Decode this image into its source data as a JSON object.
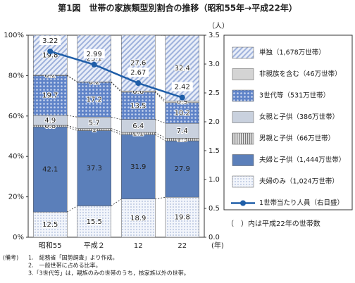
{
  "chart_data": {
    "type": "bar",
    "stacked": true,
    "title": "第1図　世帯の家族類型別割合の推移（昭和55年→平成22年）",
    "categories": [
      "昭和55",
      "平成２",
      "12",
      "22"
    ],
    "xlabel": "(年)",
    "y2label": "（人）",
    "series": [
      {
        "name": "夫婦のみ（1,024万世帯）",
        "color": "#dfe6f3",
        "pattern": "dots-light",
        "values": [
          12.5,
          15.5,
          18.9,
          19.8
        ]
      },
      {
        "name": "夫婦と子供（1,444万世帯）",
        "color": "#5b7fba",
        "pattern": "solid",
        "values": [
          42.1,
          37.3,
          31.9,
          27.9
        ]
      },
      {
        "name": "男親と子供（66万世帯）",
        "color": "#9a9a9a",
        "pattern": "stripes",
        "values": [
          0.8,
          1.0,
          1.1,
          1.3
        ]
      },
      {
        "name": "女親と子供（386万世帯）",
        "color": "#c9d1de",
        "pattern": "solid",
        "values": [
          4.9,
          5.7,
          6.4,
          7.4
        ]
      },
      {
        "name": "3世代等（531万世帯）",
        "color": "#6f8fcf",
        "pattern": "dots",
        "values": [
          19.7,
          17.2,
          13.5,
          10.2
        ]
      },
      {
        "name": "非親族を含む（46万世帯）",
        "color": "#d4d4d4",
        "pattern": "solid",
        "values": [
          0.2,
          0.2,
          0.6,
          0.9
        ]
      },
      {
        "name": "単独（1,678万世帯）",
        "color": "#9fb2dc",
        "pattern": "hatch",
        "values": [
          19.8,
          23.1,
          27.6,
          32.4
        ]
      },
      {
        "name": "1世帯当たり人員（右目盛）",
        "type": "line",
        "axis": "y2",
        "color": "#1f5ea8",
        "values": [
          3.22,
          2.99,
          2.67,
          2.42
        ]
      }
    ],
    "ylim": [
      0,
      100
    ],
    "yticks": [
      {
        "value": 0,
        "label": "0%"
      },
      {
        "value": 20,
        "label": "20%"
      },
      {
        "value": 40,
        "label": "40%"
      },
      {
        "value": 60,
        "label": "60%"
      },
      {
        "value": 80,
        "label": "80%"
      },
      {
        "value": 100,
        "label": "100%"
      }
    ],
    "y2lim": [
      0,
      3.5
    ],
    "y2ticks": [
      {
        "value": 0,
        "label": "0.0"
      },
      0.5,
      {
        "value": 1,
        "label": "1.0"
      },
      1.5,
      {
        "value": 2,
        "label": "2.0"
      },
      2.5,
      {
        "value": 3,
        "label": "3.0"
      },
      3.5
    ],
    "note": "（　）内は平成22年の世帯数"
  },
  "notes": {
    "heading": "(備考)",
    "items": [
      "1.　総務省「国勢調査」より作成。",
      "2.　一般世帯に占める比率。",
      "3.「3世代等」は，親族のみの世帯のうち，核家族以外の世帯。"
    ]
  }
}
